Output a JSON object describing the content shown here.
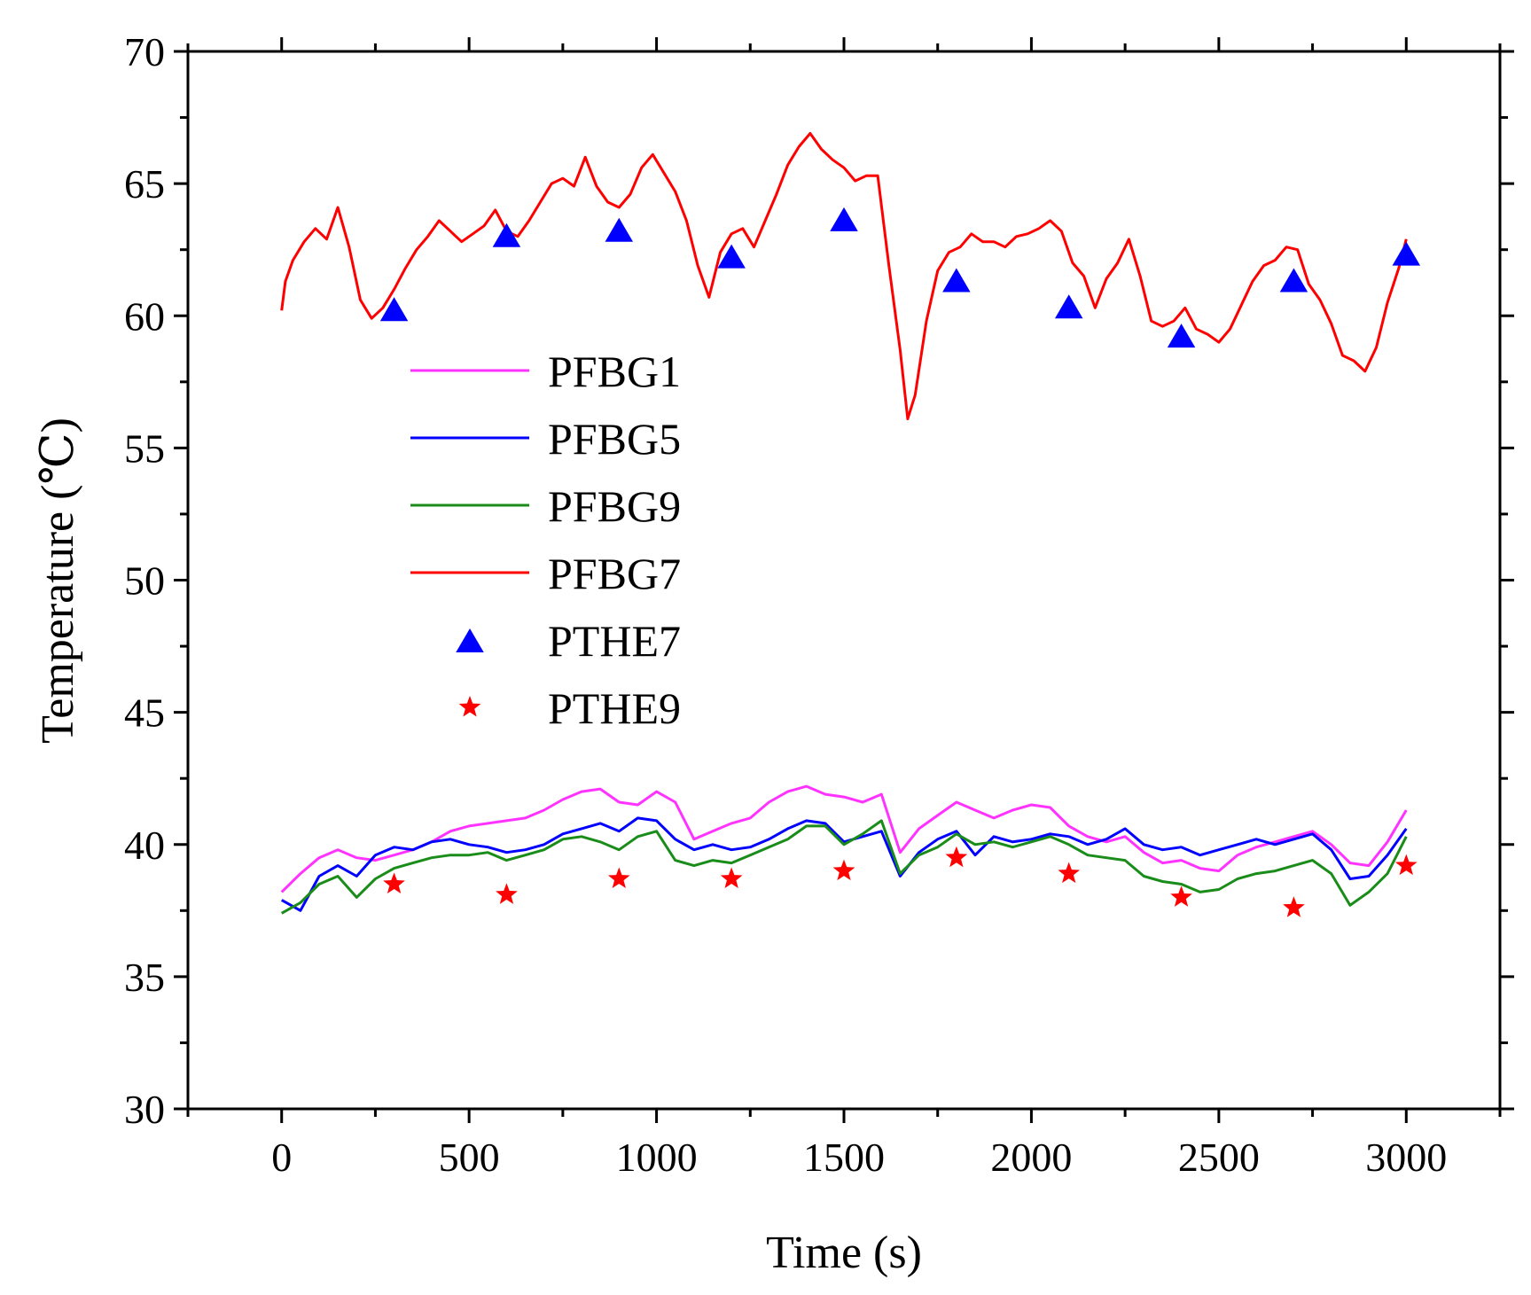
{
  "chart_data": {
    "type": "line",
    "title": "",
    "xlabel": "Time (s)",
    "ylabel": "Temperature (℃)",
    "xlim": [
      -250,
      3250
    ],
    "ylim": [
      30,
      70
    ],
    "xticks": [
      0,
      500,
      1000,
      1500,
      2000,
      2500,
      3000
    ],
    "yticks": [
      30,
      35,
      40,
      45,
      50,
      55,
      60,
      65,
      70
    ],
    "xtick_labels": [
      "0",
      "500",
      "1000",
      "1500",
      "2000",
      "2500",
      "3000"
    ],
    "ytick_labels": [
      "30",
      "35",
      "40",
      "45",
      "50",
      "55",
      "60",
      "65",
      "70"
    ],
    "legend_position": "center-left",
    "series": [
      {
        "name": "PFBG1",
        "kind": "line",
        "color": "#ff33ff",
        "x": [
          0,
          50,
          100,
          150,
          200,
          250,
          300,
          350,
          400,
          450,
          500,
          550,
          600,
          650,
          700,
          750,
          800,
          850,
          900,
          950,
          1000,
          1050,
          1100,
          1150,
          1200,
          1250,
          1300,
          1350,
          1400,
          1450,
          1500,
          1550,
          1600,
          1650,
          1700,
          1750,
          1800,
          1850,
          1900,
          1950,
          2000,
          2050,
          2100,
          2150,
          2200,
          2250,
          2300,
          2350,
          2400,
          2450,
          2500,
          2550,
          2600,
          2650,
          2700,
          2750,
          2800,
          2850,
          2900,
          2950,
          3000
        ],
        "y": [
          38.2,
          38.9,
          39.5,
          39.8,
          39.5,
          39.4,
          39.6,
          39.8,
          40.1,
          40.5,
          40.7,
          40.8,
          40.9,
          41.0,
          41.3,
          41.7,
          42.0,
          42.1,
          41.6,
          41.5,
          42.0,
          41.6,
          40.2,
          40.5,
          40.8,
          41.0,
          41.6,
          42.0,
          42.2,
          41.9,
          41.8,
          41.6,
          41.9,
          39.7,
          40.6,
          41.1,
          41.6,
          41.3,
          41.0,
          41.3,
          41.5,
          41.4,
          40.7,
          40.3,
          40.1,
          40.3,
          39.7,
          39.3,
          39.4,
          39.1,
          39.0,
          39.6,
          39.9,
          40.1,
          40.3,
          40.5,
          40.0,
          39.3,
          39.2,
          40.1,
          41.3
        ]
      },
      {
        "name": "PFBG5",
        "kind": "line",
        "color": "#0000ff",
        "x": [
          0,
          50,
          100,
          150,
          200,
          250,
          300,
          350,
          400,
          450,
          500,
          550,
          600,
          650,
          700,
          750,
          800,
          850,
          900,
          950,
          1000,
          1050,
          1100,
          1150,
          1200,
          1250,
          1300,
          1350,
          1400,
          1450,
          1500,
          1550,
          1600,
          1650,
          1700,
          1750,
          1800,
          1850,
          1900,
          1950,
          2000,
          2050,
          2100,
          2150,
          2200,
          2250,
          2300,
          2350,
          2400,
          2450,
          2500,
          2550,
          2600,
          2650,
          2700,
          2750,
          2800,
          2850,
          2900,
          2950,
          3000
        ],
        "y": [
          37.9,
          37.5,
          38.8,
          39.2,
          38.8,
          39.6,
          39.9,
          39.8,
          40.1,
          40.2,
          40.0,
          39.9,
          39.7,
          39.8,
          40.0,
          40.4,
          40.6,
          40.8,
          40.5,
          41.0,
          40.9,
          40.2,
          39.8,
          40.0,
          39.8,
          39.9,
          40.2,
          40.6,
          40.9,
          40.8,
          40.1,
          40.3,
          40.5,
          38.8,
          39.7,
          40.2,
          40.5,
          39.6,
          40.3,
          40.1,
          40.2,
          40.4,
          40.3,
          40.0,
          40.2,
          40.6,
          40.0,
          39.8,
          39.9,
          39.6,
          39.8,
          40.0,
          40.2,
          40.0,
          40.2,
          40.4,
          39.8,
          38.7,
          38.8,
          39.6,
          40.6
        ]
      },
      {
        "name": "PFBG9",
        "kind": "line",
        "color": "#1a8c1a",
        "x": [
          0,
          50,
          100,
          150,
          200,
          250,
          300,
          350,
          400,
          450,
          500,
          550,
          600,
          650,
          700,
          750,
          800,
          850,
          900,
          950,
          1000,
          1050,
          1100,
          1150,
          1200,
          1250,
          1300,
          1350,
          1400,
          1450,
          1500,
          1550,
          1600,
          1650,
          1700,
          1750,
          1800,
          1850,
          1900,
          1950,
          2000,
          2050,
          2100,
          2150,
          2200,
          2250,
          2300,
          2350,
          2400,
          2450,
          2500,
          2550,
          2600,
          2650,
          2700,
          2750,
          2800,
          2850,
          2900,
          2950,
          3000
        ],
        "y": [
          37.4,
          37.8,
          38.5,
          38.8,
          38.0,
          38.7,
          39.1,
          39.3,
          39.5,
          39.6,
          39.6,
          39.7,
          39.4,
          39.6,
          39.8,
          40.2,
          40.3,
          40.1,
          39.8,
          40.3,
          40.5,
          39.4,
          39.2,
          39.4,
          39.3,
          39.6,
          39.9,
          40.2,
          40.7,
          40.7,
          40.0,
          40.4,
          40.9,
          38.9,
          39.6,
          39.9,
          40.4,
          40.0,
          40.1,
          39.9,
          40.1,
          40.3,
          40.0,
          39.6,
          39.5,
          39.4,
          38.8,
          38.6,
          38.5,
          38.2,
          38.3,
          38.7,
          38.9,
          39.0,
          39.2,
          39.4,
          38.9,
          37.7,
          38.2,
          38.9,
          40.3
        ]
      },
      {
        "name": "PFBG7",
        "kind": "line",
        "color": "#ff0000",
        "x": [
          0,
          10,
          30,
          60,
          90,
          120,
          150,
          180,
          210,
          240,
          270,
          300,
          330,
          360,
          390,
          420,
          450,
          480,
          510,
          540,
          570,
          600,
          630,
          660,
          690,
          720,
          750,
          780,
          810,
          840,
          870,
          900,
          930,
          960,
          990,
          1020,
          1050,
          1080,
          1110,
          1140,
          1170,
          1200,
          1230,
          1260,
          1290,
          1320,
          1350,
          1380,
          1410,
          1440,
          1470,
          1500,
          1530,
          1560,
          1590,
          1620,
          1650,
          1670,
          1690,
          1720,
          1750,
          1780,
          1810,
          1840,
          1870,
          1900,
          1930,
          1960,
          1990,
          2020,
          2050,
          2080,
          2110,
          2140,
          2170,
          2200,
          2230,
          2260,
          2290,
          2320,
          2350,
          2380,
          2410,
          2440,
          2470,
          2500,
          2530,
          2560,
          2590,
          2620,
          2650,
          2680,
          2710,
          2740,
          2770,
          2800,
          2830,
          2860,
          2890,
          2920,
          2950,
          2980,
          3000
        ],
        "y": [
          60.2,
          61.3,
          62.1,
          62.8,
          63.3,
          62.9,
          64.1,
          62.6,
          60.6,
          59.9,
          60.3,
          61.0,
          61.8,
          62.5,
          63.0,
          63.6,
          63.2,
          62.8,
          63.1,
          63.4,
          64.0,
          63.2,
          63.0,
          63.6,
          64.3,
          65.0,
          65.2,
          64.9,
          66.0,
          64.9,
          64.3,
          64.1,
          64.6,
          65.6,
          66.1,
          65.4,
          64.7,
          63.6,
          61.9,
          60.7,
          62.4,
          63.1,
          63.3,
          62.6,
          63.6,
          64.6,
          65.7,
          66.4,
          66.9,
          66.3,
          65.9,
          65.6,
          65.1,
          65.3,
          65.3,
          61.9,
          58.7,
          56.1,
          57.0,
          59.8,
          61.7,
          62.4,
          62.6,
          63.1,
          62.8,
          62.8,
          62.6,
          63.0,
          63.1,
          63.3,
          63.6,
          63.2,
          62.0,
          61.5,
          60.3,
          61.4,
          62.0,
          62.9,
          61.5,
          59.8,
          59.6,
          59.8,
          60.3,
          59.5,
          59.3,
          59.0,
          59.5,
          60.4,
          61.3,
          61.9,
          62.1,
          62.6,
          62.5,
          61.2,
          60.6,
          59.7,
          58.5,
          58.3,
          57.9,
          58.8,
          60.5,
          61.8,
          62.9
        ]
      },
      {
        "name": "PTHE7",
        "kind": "marker",
        "marker": "triangle",
        "color": "#0000ff",
        "x": [
          300,
          600,
          900,
          1200,
          1500,
          1800,
          2100,
          2400,
          2700,
          3000
        ],
        "y": [
          60.2,
          63.0,
          63.2,
          62.2,
          63.6,
          61.3,
          60.3,
          59.2,
          61.3,
          62.3
        ]
      },
      {
        "name": "PTHE9",
        "kind": "marker",
        "marker": "star",
        "color": "#ff0000",
        "x": [
          300,
          600,
          900,
          1200,
          1500,
          1800,
          2100,
          2400,
          2700,
          3000
        ],
        "y": [
          38.5,
          38.1,
          38.7,
          38.7,
          39.0,
          39.5,
          38.9,
          38.0,
          37.6,
          39.2
        ]
      }
    ]
  }
}
